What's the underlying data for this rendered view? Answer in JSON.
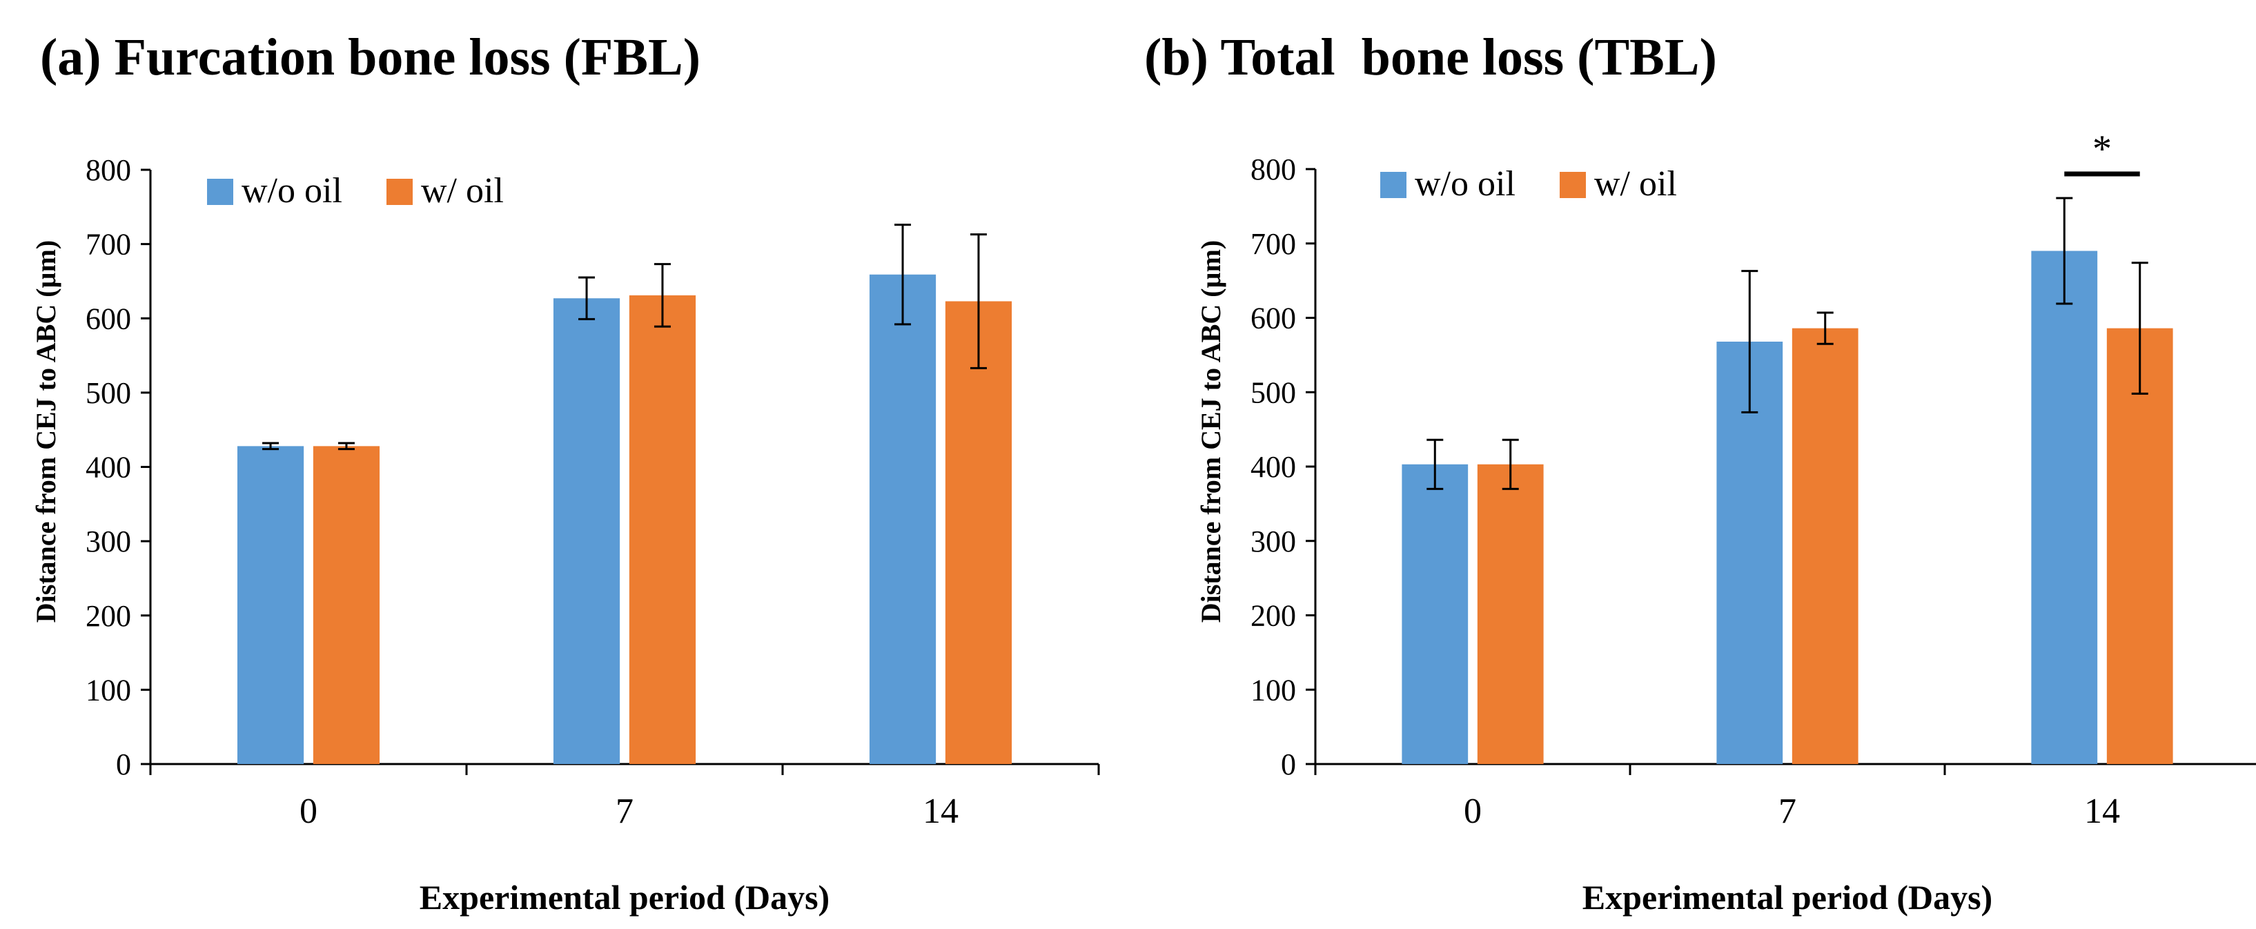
{
  "chart_data": [
    {
      "type": "bar",
      "title": "(a) Furcation bone loss (FBL)",
      "xlabel": "Experimental period (Days)",
      "ylabel": "Distance from CEJ to ABC (µm)",
      "categories": [
        "0",
        "7",
        "14"
      ],
      "ylim": [
        0,
        800
      ],
      "yticks": [
        0,
        100,
        200,
        300,
        400,
        500,
        600,
        700,
        800
      ],
      "legend_position": "top-left",
      "series": [
        {
          "name": "w/o oil",
          "color": "#5B9BD5",
          "values": [
            428,
            627,
            659
          ],
          "errors": [
            4,
            28,
            67
          ]
        },
        {
          "name": "w/ oil",
          "color": "#ED7D31",
          "values": [
            428,
            631,
            623
          ],
          "errors": [
            4,
            42,
            90
          ]
        }
      ],
      "significance": []
    },
    {
      "type": "bar",
      "title": "(b) Total  bone loss (TBL)",
      "xlabel": "Experimental period (Days)",
      "ylabel": "Distance from CEJ to ABC (µm)",
      "categories": [
        "0",
        "7",
        "14"
      ],
      "ylim": [
        0,
        800
      ],
      "yticks": [
        0,
        100,
        200,
        300,
        400,
        500,
        600,
        700,
        800
      ],
      "legend_position": "top-left",
      "series": [
        {
          "name": "w/o oil",
          "color": "#5B9BD5",
          "values": [
            403,
            568,
            690
          ],
          "errors": [
            33,
            95,
            71
          ]
        },
        {
          "name": "w/ oil",
          "color": "#ED7D31",
          "values": [
            403,
            586,
            586
          ],
          "errors": [
            33,
            21,
            88
          ]
        }
      ],
      "significance": [
        {
          "category": "14",
          "label": "*"
        }
      ]
    }
  ]
}
